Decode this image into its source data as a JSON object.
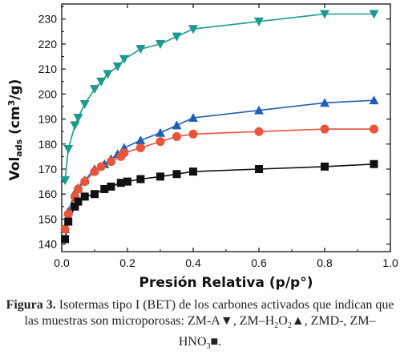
{
  "chart_data": {
    "type": "scatter",
    "xlabel": "Presión Relativa (p/p°)",
    "ylabel": {
      "prefix": "Vol",
      "sub": "ads",
      "suffix": " (cm",
      "sup": "3",
      "end": "/g)"
    },
    "xlim": [
      0.0,
      1.0
    ],
    "ylim": [
      137,
      236
    ],
    "xticks": [
      0.0,
      0.2,
      0.4,
      0.6,
      0.8,
      1.0
    ],
    "xtick_labels": [
      "0.0",
      "0.2",
      "0.4",
      "0.6",
      "0.8",
      "1.0"
    ],
    "yticks": [
      140,
      150,
      160,
      170,
      180,
      190,
      200,
      210,
      220,
      230
    ],
    "ytick_labels": [
      "140",
      "150",
      "160",
      "170",
      "180",
      "190",
      "200",
      "210",
      "220",
      "230"
    ],
    "grid": false,
    "series": [
      {
        "key": "zm-a",
        "marker": "triangle-down",
        "color": "#1a9a8c",
        "x": [
          0.01,
          0.02,
          0.04,
          0.05,
          0.07,
          0.1,
          0.12,
          0.14,
          0.17,
          0.19,
          0.24,
          0.3,
          0.35,
          0.4,
          0.6,
          0.8,
          0.95
        ],
        "y": [
          165.5,
          178,
          187.5,
          190.5,
          196,
          202,
          205,
          208,
          211,
          214,
          218,
          220,
          223,
          226,
          229,
          232,
          232
        ]
      },
      {
        "key": "zm-h2o2",
        "marker": "triangle-up",
        "color": "#1f5fb5",
        "x": [
          0.01,
          0.02,
          0.04,
          0.05,
          0.07,
          0.1,
          0.13,
          0.15,
          0.17,
          0.19,
          0.24,
          0.3,
          0.35,
          0.4,
          0.6,
          0.8,
          0.95
        ],
        "y": [
          146,
          153,
          160.5,
          162.5,
          165.5,
          170,
          172,
          174,
          176,
          178.5,
          181.5,
          184.5,
          187.5,
          190.5,
          193.5,
          196.5,
          197.5
        ]
      },
      {
        "key": "zmd",
        "marker": "circle",
        "color": "#e8553a",
        "x": [
          0.01,
          0.02,
          0.04,
          0.05,
          0.07,
          0.1,
          0.12,
          0.15,
          0.18,
          0.19,
          0.24,
          0.3,
          0.35,
          0.4,
          0.6,
          0.8,
          0.95
        ],
        "y": [
          146,
          152,
          159,
          162,
          165,
          169,
          171,
          173,
          175,
          176.5,
          178.5,
          181,
          183,
          184,
          185,
          186,
          186
        ]
      },
      {
        "key": "zm-hno3",
        "marker": "square",
        "color": "#111111",
        "x": [
          0.01,
          0.02,
          0.04,
          0.05,
          0.07,
          0.1,
          0.13,
          0.15,
          0.18,
          0.2,
          0.24,
          0.3,
          0.35,
          0.4,
          0.6,
          0.8,
          0.95
        ],
        "y": [
          142,
          149,
          155,
          157,
          159,
          160,
          162,
          163,
          164.5,
          165,
          166,
          167,
          168,
          169,
          170,
          171,
          172
        ]
      }
    ]
  },
  "caption": {
    "label": "Figura 3.",
    "part1": " Isotermas tipo I (BET) de los carbones activados que indican que las muestras son microporosas: ZM-A",
    "mark_zm_a": "▼",
    "part2": ", ZM–H",
    "sub_h2": "2",
    "part3": "O",
    "sub_o2": "2",
    "mark_zm_h2o2": "▲",
    "part4": ", ZMD-, ZM–HNO",
    "sub_3": "3",
    "mark_zm_hno3": "■",
    "part5": "."
  }
}
